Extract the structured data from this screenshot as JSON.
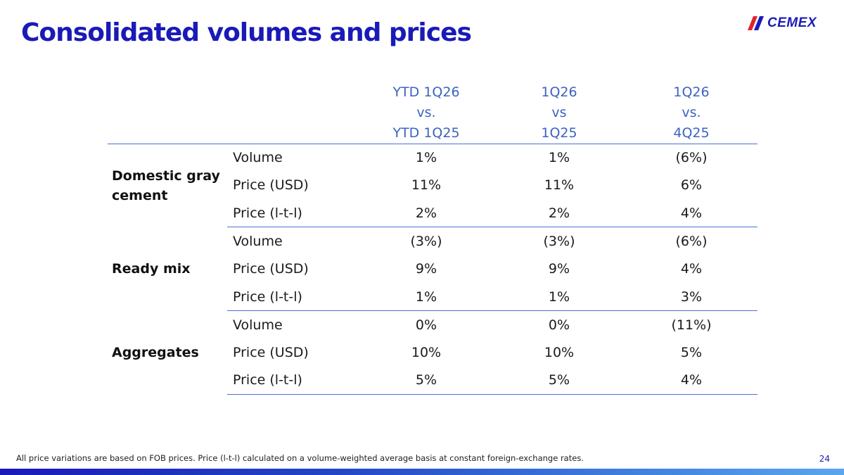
{
  "slide": {
    "title": "Consolidated volumes and prices",
    "logo_text": "CEMEX",
    "footnote": "All price variations are based on FOB prices. Price (l-t-l) calculated on a volume-weighted average basis at constant foreign-exchange rates.",
    "page_number": "24"
  },
  "table": {
    "columns": [
      {
        "line1": "YTD 1Q26",
        "line2": "vs.",
        "line3": "YTD 1Q25"
      },
      {
        "line1": "1Q26",
        "line2": "vs",
        "line3": "1Q25"
      },
      {
        "line1": "1Q26",
        "line2": "vs.",
        "line3": "4Q25"
      }
    ],
    "groups": [
      {
        "name": "Domestic gray cement",
        "rows": [
          {
            "metric": "Volume",
            "values": [
              "1%",
              "1%",
              "(6%)"
            ]
          },
          {
            "metric": "Price (USD)",
            "values": [
              "11%",
              "11%",
              "6%"
            ]
          },
          {
            "metric": "Price (l-t-l)",
            "values": [
              "2%",
              "2%",
              "4%"
            ]
          }
        ]
      },
      {
        "name": "Ready mix",
        "rows": [
          {
            "metric": "Volume",
            "values": [
              "(3%)",
              "(3%)",
              "(6%)"
            ]
          },
          {
            "metric": "Price (USD)",
            "values": [
              "9%",
              "9%",
              "4%"
            ]
          },
          {
            "metric": "Price (l-t-l)",
            "values": [
              "1%",
              "1%",
              "3%"
            ]
          }
        ]
      },
      {
        "name": "Aggregates",
        "rows": [
          {
            "metric": "Volume",
            "values": [
              "0%",
              "0%",
              "(11%)"
            ]
          },
          {
            "metric": "Price (USD)",
            "values": [
              "10%",
              "10%",
              "5%"
            ]
          },
          {
            "metric": "Price (l-t-l)",
            "values": [
              "5%",
              "5%",
              "4%"
            ]
          }
        ]
      }
    ]
  },
  "colors": {
    "brand_blue": "#1a1ab8",
    "header_blue": "#3c63c2",
    "logo_red": "#e0242b"
  }
}
